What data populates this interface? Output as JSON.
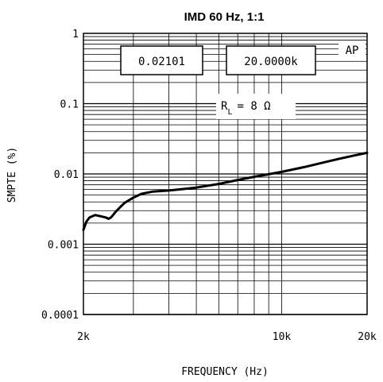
{
  "chart_data": {
    "type": "line",
    "title": "IMD 60 Hz, 1:1",
    "xlabel": "FREQUENCY (Hz)",
    "ylabel": "SMPTE (%)",
    "x_scale": "log",
    "y_scale": "log",
    "xlim": [
      2000,
      20000
    ],
    "ylim": [
      0.0001,
      1
    ],
    "x_ticks": [
      {
        "value": 2000,
        "label": "2k"
      },
      {
        "value": 10000,
        "label": "10k"
      },
      {
        "value": 20000,
        "label": "20k"
      }
    ],
    "y_ticks": [
      {
        "value": 1,
        "label": "1"
      },
      {
        "value": 0.1,
        "label": "0.1"
      },
      {
        "value": 0.01,
        "label": "0.01"
      },
      {
        "value": 0.001,
        "label": "0.001"
      },
      {
        "value": 0.0001,
        "label": "0.0001"
      }
    ],
    "grid": true,
    "series": [
      {
        "x": [
          2000,
          2050,
          2100,
          2200,
          2300,
          2400,
          2450,
          2500,
          2600,
          2700,
          2800,
          3000,
          3200,
          3500,
          4000,
          4500,
          5000,
          5500,
          6000,
          7000,
          8000,
          9000,
          10000,
          12000,
          14000,
          16000,
          18000,
          20000
        ],
        "y": [
          0.0016,
          0.0021,
          0.0024,
          0.0026,
          0.0025,
          0.0024,
          0.0023,
          0.0024,
          0.0029,
          0.0034,
          0.0039,
          0.0046,
          0.0052,
          0.0056,
          0.0058,
          0.0061,
          0.0064,
          0.0068,
          0.0072,
          0.0082,
          0.0091,
          0.0099,
          0.0107,
          0.0125,
          0.0145,
          0.0165,
          0.0183,
          0.02
        ]
      }
    ],
    "annotations": {
      "readout_left": "0.02101",
      "readout_right": "20.0000k",
      "ap_label": "AP",
      "rl_label": "R",
      "rl_sub": "L",
      "rl_value": "= 8 Ω"
    }
  }
}
